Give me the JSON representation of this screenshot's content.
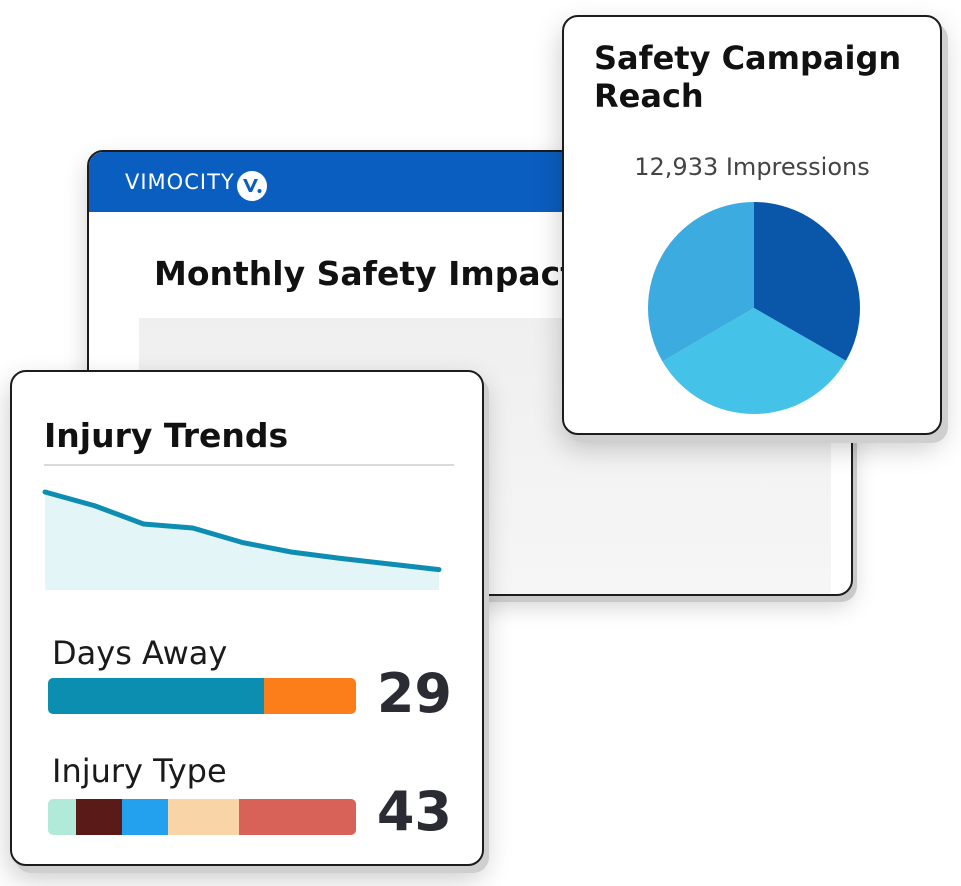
{
  "back_window": {
    "brand_text": "VIMOCITY",
    "brand_logo_letter": "v.",
    "title": "Monthly Safety Impact",
    "header_color": "#0a5ec0"
  },
  "campaign_card": {
    "title": "Safety Campaign Reach",
    "subtitle": "12,933 Impressions"
  },
  "trends_card": {
    "title": "Injury Trends",
    "metrics": [
      {
        "label": "Days Away",
        "value": "29",
        "segments": [
          {
            "fraction": 0.7,
            "color": "#0b8eb0"
          },
          {
            "fraction": 0.3,
            "color": "#fb7e1b"
          }
        ]
      },
      {
        "label": "Injury Type",
        "value": "43",
        "segments": [
          {
            "fraction": 0.09,
            "color": "#b2ead9"
          },
          {
            "fraction": 0.15,
            "color": "#5a1a17"
          },
          {
            "fraction": 0.15,
            "color": "#23a1ee"
          },
          {
            "fraction": 0.23,
            "color": "#f8d4a6"
          },
          {
            "fraction": 0.38,
            "color": "#d86158"
          }
        ]
      }
    ]
  },
  "chart_data": [
    {
      "type": "pie",
      "title": "Safety Campaign Reach",
      "subtitle": "12,933 Impressions",
      "values": [
        33.3,
        33.3,
        33.4
      ],
      "colors": [
        "#0a56a8",
        "#44c2e8",
        "#3cabe0"
      ]
    },
    {
      "type": "area",
      "title": "Injury Trends",
      "x": [
        0,
        1,
        2,
        3,
        4,
        5,
        6,
        7,
        8
      ],
      "values": [
        100,
        83,
        60,
        55,
        37,
        25,
        17,
        10,
        3
      ],
      "ylim": [
        0,
        100
      ],
      "line_color": "#0e8db3",
      "fill_color": "#e3f5f7"
    }
  ]
}
